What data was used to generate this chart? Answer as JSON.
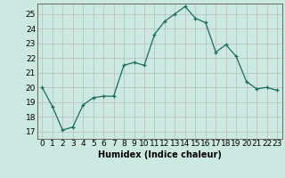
{
  "x": [
    0,
    1,
    2,
    3,
    4,
    5,
    6,
    7,
    8,
    9,
    10,
    11,
    12,
    13,
    14,
    15,
    16,
    17,
    18,
    19,
    20,
    21,
    22,
    23
  ],
  "y": [
    20.0,
    18.7,
    17.1,
    17.3,
    18.8,
    19.3,
    19.4,
    19.4,
    21.5,
    21.7,
    21.5,
    23.6,
    24.5,
    25.0,
    25.5,
    24.7,
    24.4,
    22.4,
    22.9,
    22.1,
    20.4,
    19.9,
    20.0,
    19.8
  ],
  "xlabel": "Humidex (Indice chaleur)",
  "ylabel_ticks": [
    17,
    18,
    19,
    20,
    21,
    22,
    23,
    24,
    25
  ],
  "ylim": [
    16.5,
    25.7
  ],
  "xlim": [
    -0.5,
    23.5
  ],
  "bg_color": "#cce9e1",
  "grid_color": "#b0b0b0",
  "line_color": "#1a6b5a",
  "marker_color": "#1a6b5a",
  "xlabel_fontsize": 7,
  "tick_fontsize": 6.5
}
